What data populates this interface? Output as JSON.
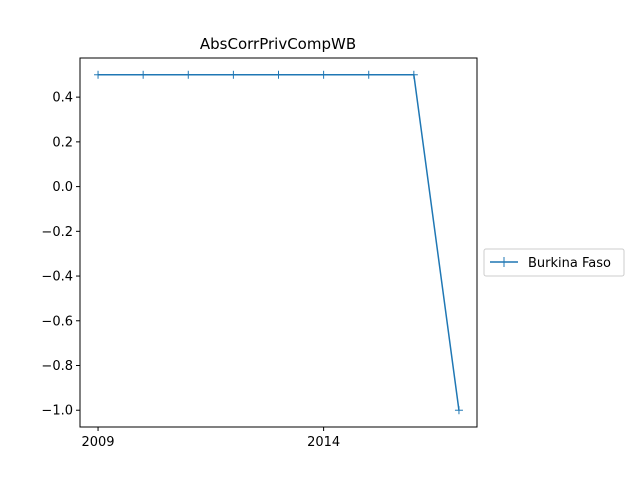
{
  "chart_data": {
    "type": "line",
    "title": "AbsCorrPrivCompWB",
    "xlabel": "",
    "ylabel": "",
    "x": [
      2009,
      2010,
      2011,
      2012,
      2013,
      2014,
      2015,
      2016,
      2017
    ],
    "x_ticks": [
      "2009",
      "2014"
    ],
    "y_ticks": [
      "0.4",
      "0.2",
      "0.0",
      "−0.2",
      "−0.4",
      "−0.6",
      "−0.8",
      "−1.0"
    ],
    "y_tick_values": [
      0.4,
      0.2,
      0.0,
      -0.2,
      -0.4,
      -0.6,
      -0.8,
      -1.0
    ],
    "xlim": [
      2008.6,
      2017.4
    ],
    "ylim": [
      -1.075,
      0.575
    ],
    "grid": false,
    "legend_position": "outside-right",
    "series": [
      {
        "name": "Burkina Faso",
        "color": "#1f77b4",
        "marker": "plus",
        "values": [
          0.5,
          0.5,
          0.5,
          0.5,
          0.5,
          0.5,
          0.5,
          0.5,
          -1.0
        ]
      }
    ]
  }
}
